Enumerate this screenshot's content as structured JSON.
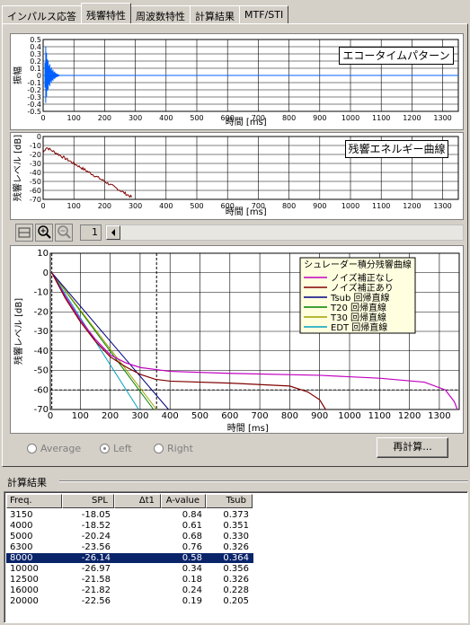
{
  "tabs": [
    "インパルス応答",
    "残響特性",
    "周波数特性",
    "計算結果",
    "MTF/STI"
  ],
  "echo_chart": {
    "button_label": "エコータイムパターン",
    "ylabel": "振幅",
    "xlabel": "時間 [ms]",
    "y_ticks": [
      "0.5",
      "0.4",
      "0.3",
      "0.2",
      "0.1",
      "0",
      "-0.1",
      "-0.2",
      "-0.3",
      "-0.4",
      "-0.5"
    ],
    "x_ticks": [
      "0",
      "100",
      "200",
      "300",
      "400",
      "500",
      "600",
      "700",
      "800",
      "900",
      "1000",
      "1100",
      "1200",
      "1300"
    ]
  },
  "energy_chart": {
    "button_label": "残響エネルギー曲線",
    "ylabel": "残響レベル [dB]",
    "xlabel": "時間 [ms]",
    "y_ticks": [
      "0",
      "-10",
      "-20",
      "-30",
      "-40",
      "-50",
      "-60",
      "-70"
    ],
    "x_ticks": [
      "0",
      "100",
      "200",
      "300",
      "400",
      "500",
      "600",
      "700",
      "800",
      "900",
      "1000",
      "1100",
      "1200",
      "1300"
    ]
  },
  "toolbar": {
    "page_value": "1"
  },
  "decay_chart": {
    "ylabel": "残響レベル [dB]",
    "xlabel": "時間 [ms]",
    "y_ticks": [
      "10",
      "0",
      "-10",
      "-20",
      "-30",
      "-40",
      "-50",
      "-60",
      "-70"
    ],
    "x_ticks": [
      "0",
      "100",
      "200",
      "300",
      "400",
      "500",
      "600",
      "700",
      "800",
      "900",
      "1000",
      "1100",
      "1200",
      "1300"
    ],
    "legend_title": "シュレーダー積分残響曲線",
    "legend": [
      {
        "label": "ノイズ補正なし",
        "color": "#c000c0"
      },
      {
        "label": "ノイズ補正あり",
        "color": "#800000"
      },
      {
        "label": "Tsub 回帰直線",
        "color": "#000080"
      },
      {
        "label": "T20 回帰直線",
        "color": "#008000"
      },
      {
        "label": "T30 回帰直線",
        "color": "#a0a000"
      },
      {
        "label": "EDT 回帰直線",
        "color": "#00a0c0"
      }
    ]
  },
  "radios": {
    "average": "Average",
    "left": "Left",
    "right": "Right"
  },
  "recalc_label": "再計算...",
  "results": {
    "title": "計算結果",
    "headers": [
      "Freq.",
      "SPL",
      "Δt1",
      "A-value",
      "Tsub"
    ],
    "rows": [
      [
        "3150",
        "-18.05",
        "",
        "0.84",
        "0.373"
      ],
      [
        "4000",
        "-18.52",
        "",
        "0.61",
        "0.351"
      ],
      [
        "5000",
        "-20.24",
        "",
        "0.68",
        "0.330"
      ],
      [
        "6300",
        "-23.56",
        "",
        "0.76",
        "0.326"
      ],
      [
        "8000",
        "-26.14",
        "",
        "0.58",
        "0.364"
      ],
      [
        "10000",
        "-26.97",
        "",
        "0.34",
        "0.356"
      ],
      [
        "12500",
        "-21.58",
        "",
        "0.18",
        "0.326"
      ],
      [
        "16000",
        "-21.82",
        "",
        "0.24",
        "0.228"
      ],
      [
        "20000",
        "-22.56",
        "",
        "0.19",
        "0.205"
      ]
    ],
    "selected_row": 4
  }
}
